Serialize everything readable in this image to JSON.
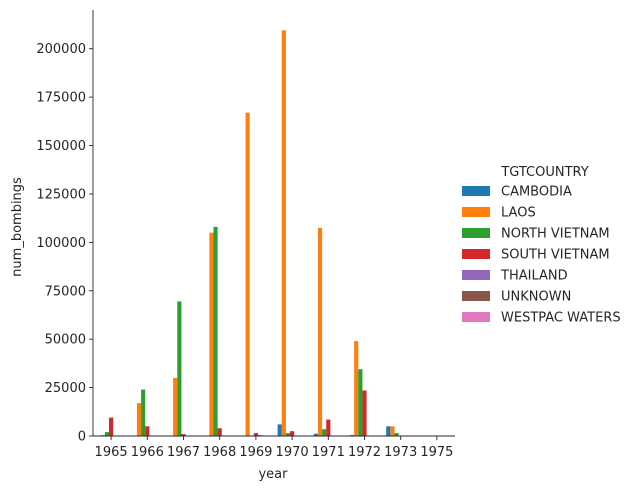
{
  "chart_data": {
    "type": "bar",
    "xlabel": "year",
    "ylabel": "num_bombings",
    "ylim": [
      0,
      220000
    ],
    "yticks": [
      0,
      25000,
      50000,
      75000,
      100000,
      125000,
      150000,
      175000,
      200000
    ],
    "categories": [
      "1965",
      "1966",
      "1967",
      "1968",
      "1969",
      "1970",
      "1971",
      "1972",
      "1973",
      "1975"
    ],
    "legend_title": "TGTCOUNTRY",
    "legend_position": "right",
    "series": [
      {
        "name": "CAMBODIA",
        "color": "#1f77b4",
        "values": [
          0,
          0,
          0,
          0,
          0,
          6000,
          1200,
          500,
          5000,
          0
        ]
      },
      {
        "name": "LAOS",
        "color": "#ff7f0e",
        "values": [
          500,
          17000,
          30000,
          105000,
          167000,
          209500,
          107500,
          49000,
          5000,
          0
        ]
      },
      {
        "name": "NORTH VIETNAM",
        "color": "#2ca02c",
        "values": [
          2000,
          24000,
          69500,
          108000,
          0,
          1500,
          3500,
          34500,
          1500,
          0
        ]
      },
      {
        "name": "SOUTH VIETNAM",
        "color": "#d62728",
        "values": [
          9500,
          5000,
          1000,
          4000,
          1500,
          2500,
          8500,
          23500,
          0,
          0
        ]
      },
      {
        "name": "THAILAND",
        "color": "#9467bd",
        "values": [
          0,
          0,
          0,
          0,
          500,
          0,
          0,
          0,
          0,
          0
        ]
      },
      {
        "name": "UNKNOWN",
        "color": "#8c564b",
        "values": [
          0,
          0,
          0,
          0,
          0,
          0,
          0,
          0,
          0,
          0
        ]
      },
      {
        "name": "WESTPAC WATERS",
        "color": "#e377c2",
        "values": [
          0,
          0,
          0,
          0,
          0,
          0,
          0,
          0,
          0,
          0
        ]
      }
    ]
  }
}
